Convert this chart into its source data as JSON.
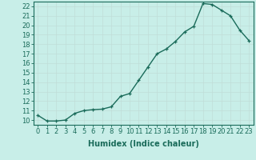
{
  "x": [
    0,
    1,
    2,
    3,
    4,
    5,
    6,
    7,
    8,
    9,
    10,
    11,
    12,
    13,
    14,
    15,
    16,
    17,
    18,
    19,
    20,
    21,
    22,
    23
  ],
  "y": [
    10.5,
    9.9,
    9.9,
    10.0,
    10.7,
    11.0,
    11.1,
    11.15,
    11.4,
    12.5,
    12.8,
    14.2,
    15.6,
    17.0,
    17.5,
    18.3,
    19.3,
    19.9,
    22.3,
    22.2,
    21.6,
    21.0,
    19.5,
    18.4
  ],
  "line_color": "#1a6b5a",
  "bg_color": "#c8eee8",
  "grid_color": "#c0ddd8",
  "tick_color": "#1a6b5a",
  "label_color": "#1a6b5a",
  "xlabel": "Humidex (Indice chaleur)",
  "ylabel": "",
  "xlim": [
    -0.5,
    23.5
  ],
  "ylim": [
    9.5,
    22.5
  ],
  "yticks": [
    10,
    11,
    12,
    13,
    14,
    15,
    16,
    17,
    18,
    19,
    20,
    21,
    22
  ],
  "xticks": [
    0,
    1,
    2,
    3,
    4,
    5,
    6,
    7,
    8,
    9,
    10,
    11,
    12,
    13,
    14,
    15,
    16,
    17,
    18,
    19,
    20,
    21,
    22,
    23
  ],
  "marker": "+",
  "marker_size": 3.5,
  "line_width": 1.0,
  "font_size": 6.0,
  "xlabel_fontsize": 7.0
}
